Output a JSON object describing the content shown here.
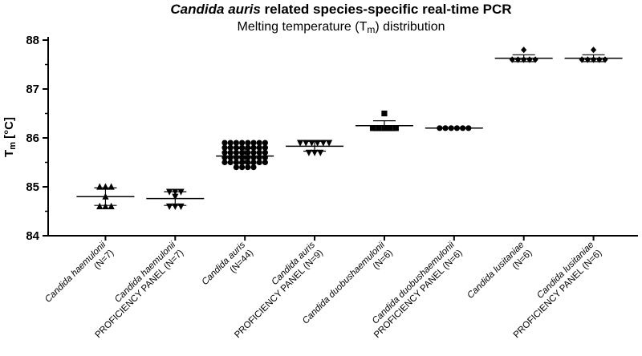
{
  "chart_data": {
    "type": "scatter",
    "title_italic": "Candida auris",
    "title_rest": " related species-specific real-time PCR",
    "subtitle_prefix": "Melting temperature (T",
    "subtitle_sub": "m",
    "subtitle_suffix": ") distribution",
    "ylabel_main": "T",
    "ylabel_sub": "m",
    "ylabel_unit": " [°C]",
    "ylim": [
      84,
      88
    ],
    "yticks": [
      "84",
      "85",
      "86",
      "87",
      "88"
    ],
    "grid": false,
    "legend": "none",
    "categories": [
      {
        "italic": "Candida haemulonii",
        "line2": "(N=7)",
        "marker": "triangle-up",
        "mean": 84.8,
        "sd_low": 84.62,
        "sd_high": 84.98,
        "points": [
          85.0,
          85.0,
          85.0,
          84.8,
          84.6,
          84.6,
          84.6
        ]
      },
      {
        "italic": "Candida haemulonii",
        "line2": "PROFICIENCY PANEL (N=7)",
        "marker": "triangle-down",
        "mean": 84.76,
        "sd_low": 84.62,
        "sd_high": 84.9,
        "points": [
          84.9,
          84.9,
          84.9,
          84.8,
          84.6,
          84.6,
          84.6
        ]
      },
      {
        "italic": "Candida auris",
        "line2": "(N=44)",
        "marker": "circle",
        "mean": 85.63,
        "sd_low": 85.48,
        "sd_high": 85.78,
        "points": [
          85.9,
          85.9,
          85.9,
          85.9,
          85.9,
          85.9,
          85.9,
          85.9,
          85.8,
          85.8,
          85.8,
          85.8,
          85.8,
          85.8,
          85.8,
          85.8,
          85.7,
          85.7,
          85.7,
          85.7,
          85.7,
          85.7,
          85.7,
          85.7,
          85.6,
          85.6,
          85.6,
          85.6,
          85.6,
          85.6,
          85.6,
          85.6,
          85.5,
          85.5,
          85.5,
          85.5,
          85.5,
          85.5,
          85.5,
          85.5,
          85.4,
          85.4,
          85.4,
          85.4
        ]
      },
      {
        "italic": "Candida auris",
        "line2": "PROFICIENCY PANEL (N=9)",
        "marker": "triangle-down",
        "mean": 85.83,
        "sd_low": 85.73,
        "sd_high": 85.93,
        "points": [
          85.9,
          85.9,
          85.9,
          85.9,
          85.9,
          85.9,
          85.7,
          85.7,
          85.7
        ]
      },
      {
        "italic": "Candida duobushaemulonii",
        "line2": "(N=6)",
        "marker": "square",
        "mean": 86.25,
        "sd_low": 86.15,
        "sd_high": 86.35,
        "points": [
          86.5,
          86.2,
          86.2,
          86.2,
          86.2,
          86.2
        ]
      },
      {
        "italic": "Candida duobushaemulonii",
        "line2": "PROFICIENCY PANEL (N=6)",
        "marker": "circle",
        "mean": 86.2,
        "sd_low": 86.2,
        "sd_high": 86.2,
        "points": [
          86.2,
          86.2,
          86.2,
          86.2,
          86.2,
          86.2
        ]
      },
      {
        "italic": "Candida lusitaniae",
        "line2": "(N=6)",
        "marker": "diamond",
        "mean": 87.63,
        "sd_low": 87.56,
        "sd_high": 87.7,
        "points": [
          87.8,
          87.6,
          87.6,
          87.6,
          87.6,
          87.6
        ]
      },
      {
        "italic": "Candida lusitaniae",
        "line2": "PROFICIENCY PANEL (N=6)",
        "marker": "diamond",
        "mean": 87.63,
        "sd_low": 87.56,
        "sd_high": 87.7,
        "points": [
          87.8,
          87.6,
          87.6,
          87.6,
          87.6,
          87.6
        ]
      }
    ]
  }
}
